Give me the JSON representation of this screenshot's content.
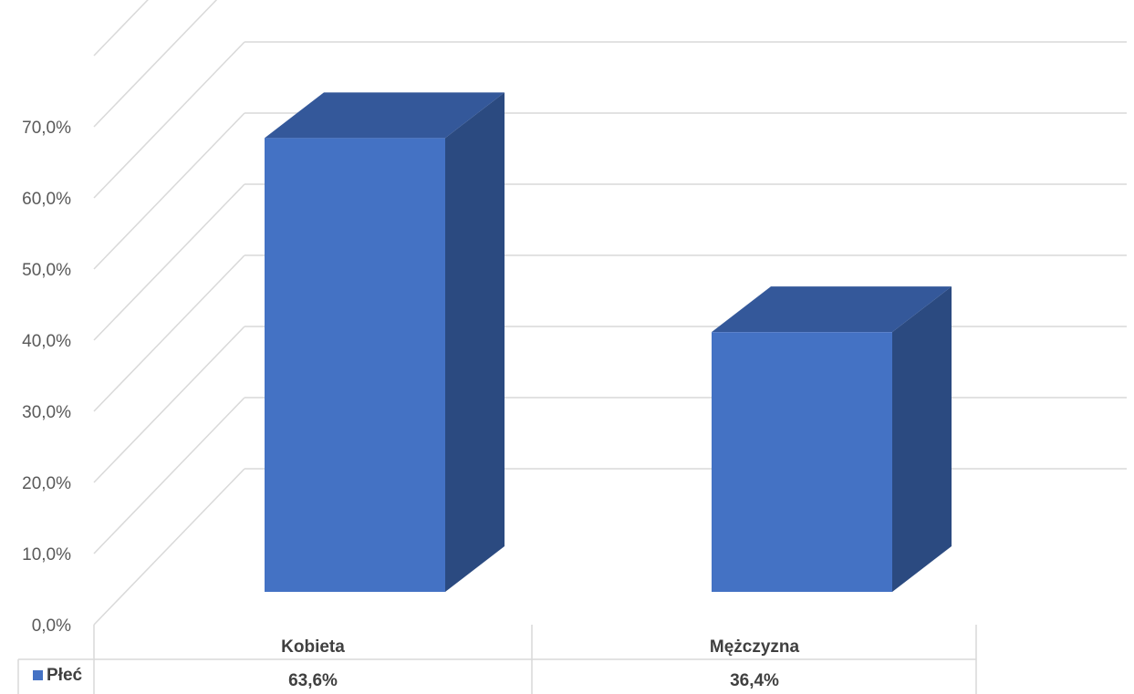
{
  "chart_data": {
    "type": "bar",
    "style": "3d-column",
    "categories": [
      "Kobieta",
      "Mężczyzna"
    ],
    "series": [
      {
        "name": "Płeć",
        "values": [
          63.6,
          36.4
        ],
        "value_labels": [
          "63,6%",
          "36,4%"
        ],
        "color": "#4472C4"
      }
    ],
    "y_ticks": [
      "0,0%",
      "10,0%",
      "20,0%",
      "30,0%",
      "40,0%",
      "50,0%",
      "60,0%",
      "70,0%"
    ],
    "ylim": [
      0,
      70
    ],
    "grid": true,
    "data_table": true,
    "colors": {
      "front": "#4472C4",
      "side": "#2B4A80",
      "top": "#34589A",
      "grid": "#D9D9D9"
    }
  }
}
